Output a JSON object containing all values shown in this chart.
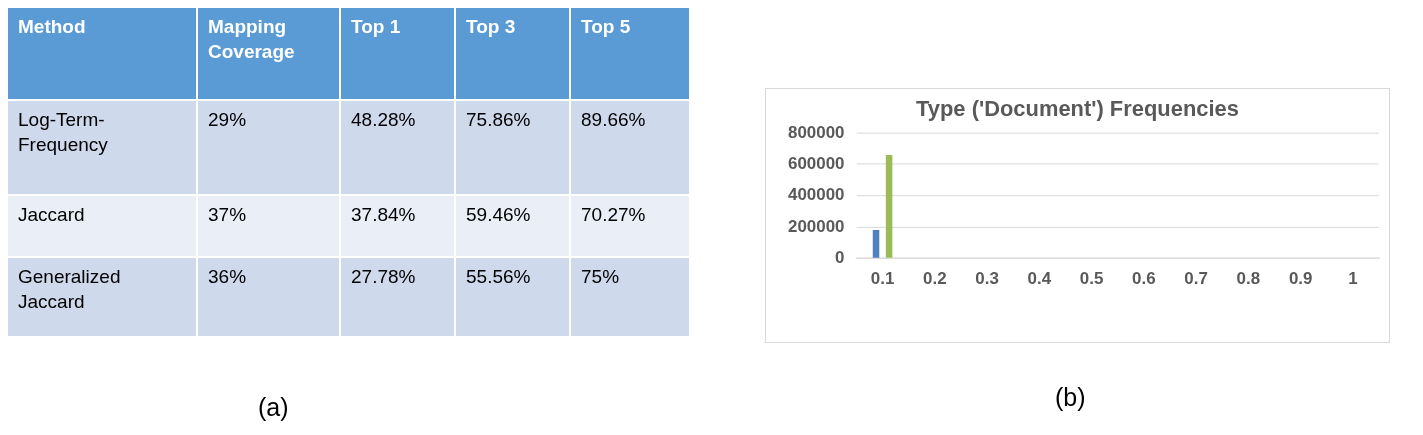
{
  "chart_data": [
    {
      "type": "other",
      "ylabel": "Method",
      "categories": [
        "Mapping Coverage",
        "Top 1",
        "Top 3",
        "Top 5"
      ],
      "y_categories": [
        "Log-Term-Frequency",
        "Jaccard",
        "Generalized Jaccard"
      ],
      "cell_labels": [
        [
          "29%",
          "48.28%",
          "75.86%",
          "89.66%"
        ],
        [
          "37%",
          "37.84%",
          "59.46%",
          "70.27%"
        ],
        [
          "36%",
          "27.78%",
          "55.56%",
          "75%"
        ]
      ],
      "annotations": [
        "(a)"
      ]
    },
    {
      "type": "bar",
      "title": "Type ('Document') Frequencies",
      "categories": [
        "0.1",
        "0.2",
        "0.3",
        "0.4",
        "0.5",
        "0.6",
        "0.7",
        "0.8",
        "0.9",
        "1"
      ],
      "series": [
        {
          "color": "#4f81bd",
          "values": [
            180000,
            0,
            0,
            0,
            0,
            0,
            0,
            0,
            0,
            0
          ]
        },
        {
          "color": "#9bbb59",
          "values": [
            660000,
            0,
            0,
            0,
            0,
            0,
            0,
            0,
            0,
            0
          ]
        }
      ],
      "ylim": [
        0,
        800000
      ],
      "yticks": [
        0,
        200000,
        400000,
        600000,
        800000
      ],
      "grid": "y",
      "annotations": [
        "(b)"
      ]
    }
  ]
}
